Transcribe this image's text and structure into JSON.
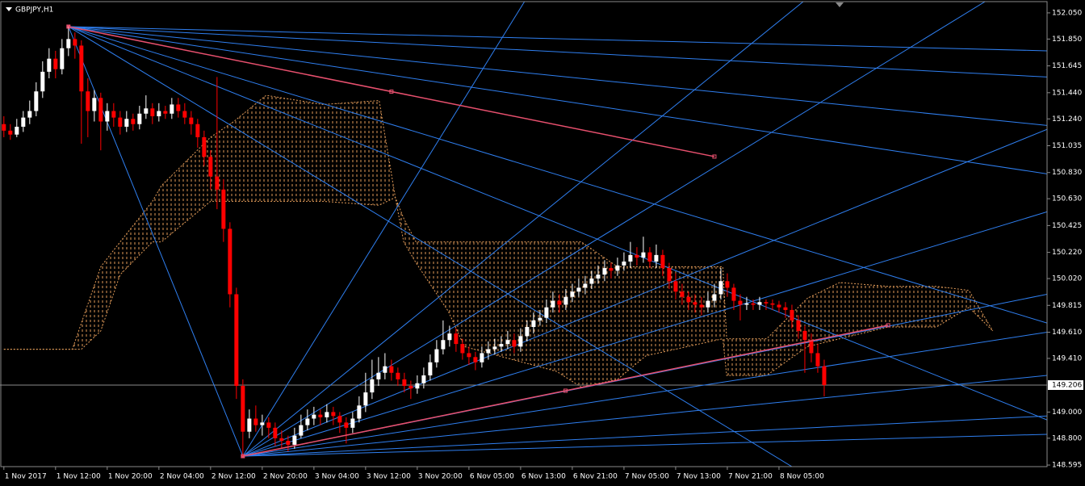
{
  "chart_data": {
    "type": "candlestick",
    "symbol": "GBPJPY,H1",
    "bull_color": "#ffffff",
    "bear_color": "#ff0000",
    "fan_color": "#2f7ff0",
    "trendline_color": "#e8506e",
    "cloud_color": "#e09a58",
    "current_price_color": "#8a8a8a",
    "xlim": [
      -0.6,
      161.5
    ],
    "ylim": [
      148.583,
      152.136
    ],
    "yticks": [
      {
        "value": 152.05,
        "label": "152.050"
      },
      {
        "value": 151.85,
        "label": "151.850"
      },
      151.645,
      {
        "value": 151.44,
        "label": "151.440"
      },
      {
        "value": 151.24,
        "label": "151.240"
      },
      151.035,
      {
        "value": 150.83,
        "label": "150.830"
      },
      {
        "value": 150.63,
        "label": "150.630"
      },
      150.425,
      {
        "value": 150.22,
        "label": "150.220"
      },
      {
        "value": 150.02,
        "label": "150.020"
      },
      149.815,
      {
        "value": 149.61,
        "label": "149.610"
      },
      {
        "value": 149.41,
        "label": "149.410"
      },
      {
        "value": 149.0,
        "label": "149.000"
      },
      {
        "value": 148.8,
        "label": "148.800"
      },
      148.595
    ],
    "xticks": [
      {
        "value": 0,
        "label": "1 Nov 2017"
      },
      {
        "value": 8,
        "label": "1 Nov 12:00"
      },
      {
        "value": 16,
        "label": "1 Nov 20:00"
      },
      {
        "value": 24,
        "label": "2 Nov 04:00"
      },
      {
        "value": 32,
        "label": "2 Nov 12:00"
      },
      {
        "value": 40,
        "label": "2 Nov 20:00"
      },
      {
        "value": 48,
        "label": "3 Nov 04:00"
      },
      {
        "value": 56,
        "label": "3 Nov 12:00"
      },
      {
        "value": 64,
        "label": "3 Nov 20:00"
      },
      {
        "value": 72,
        "label": "6 Nov 05:00"
      },
      {
        "value": 80,
        "label": "6 Nov 13:00"
      },
      {
        "value": 88,
        "label": "6 Nov 21:00"
      },
      {
        "value": 96,
        "label": "7 Nov 05:00"
      },
      {
        "value": 104,
        "label": "7 Nov 13:00"
      },
      {
        "value": 112,
        "label": "7 Nov 21:00"
      },
      {
        "value": 120,
        "label": "8 Nov 05:00"
      }
    ],
    "current_price": 149.206,
    "candles": [
      [
        151.2,
        151.26,
        151.1,
        151.15
      ],
      [
        151.15,
        151.2,
        151.08,
        151.12
      ],
      [
        151.12,
        151.24,
        151.1,
        151.18
      ],
      [
        151.18,
        151.3,
        151.14,
        151.25
      ],
      [
        151.25,
        151.38,
        151.2,
        151.3
      ],
      [
        151.3,
        151.52,
        151.26,
        151.45
      ],
      [
        151.45,
        151.68,
        151.4,
        151.6
      ],
      [
        151.6,
        151.78,
        151.55,
        151.7
      ],
      [
        151.7,
        151.76,
        151.55,
        151.62
      ],
      [
        151.62,
        151.85,
        151.58,
        151.78
      ],
      [
        151.78,
        151.945,
        151.72,
        151.85
      ],
      [
        151.85,
        151.9,
        151.7,
        151.8
      ],
      [
        151.8,
        151.84,
        151.05,
        151.45
      ],
      [
        151.45,
        151.55,
        151.1,
        151.3
      ],
      [
        151.3,
        151.46,
        151.22,
        151.4
      ],
      [
        151.4,
        151.44,
        151.0,
        151.22
      ],
      [
        151.22,
        151.36,
        151.15,
        151.3
      ],
      [
        151.3,
        151.36,
        151.18,
        151.25
      ],
      [
        151.25,
        151.3,
        151.12,
        151.18
      ],
      [
        151.18,
        151.3,
        151.14,
        151.24
      ],
      [
        151.24,
        151.28,
        151.15,
        151.2
      ],
      [
        151.2,
        151.34,
        151.16,
        151.28
      ],
      [
        151.28,
        151.42,
        151.24,
        151.32
      ],
      [
        151.32,
        151.36,
        151.2,
        151.26
      ],
      [
        151.26,
        151.36,
        151.22,
        151.3
      ],
      [
        151.3,
        151.34,
        151.24,
        151.28
      ],
      [
        151.28,
        151.4,
        151.24,
        151.35
      ],
      [
        151.35,
        151.4,
        151.25,
        151.3
      ],
      [
        151.3,
        151.36,
        151.2,
        151.25
      ],
      [
        151.25,
        151.3,
        151.12,
        151.2
      ],
      [
        151.2,
        151.24,
        151.02,
        151.1
      ],
      [
        151.1,
        151.15,
        150.88,
        150.95
      ],
      [
        150.95,
        151.0,
        150.7,
        150.8
      ],
      [
        150.8,
        151.56,
        150.55,
        150.7
      ],
      [
        150.7,
        150.78,
        150.3,
        150.4
      ],
      [
        150.4,
        150.45,
        149.8,
        149.9
      ],
      [
        149.9,
        149.95,
        149.1,
        149.2
      ],
      [
        149.2,
        149.25,
        148.663,
        148.85
      ],
      [
        148.85,
        149.02,
        148.8,
        148.95
      ],
      [
        148.95,
        149.05,
        148.85,
        148.9
      ],
      [
        148.9,
        148.98,
        148.82,
        148.92
      ],
      [
        148.92,
        148.96,
        148.8,
        148.88
      ],
      [
        148.88,
        148.92,
        148.74,
        148.8
      ],
      [
        148.8,
        148.86,
        148.72,
        148.78
      ],
      [
        148.78,
        148.82,
        148.7,
        148.75
      ],
      [
        148.75,
        148.88,
        148.72,
        148.82
      ],
      [
        148.82,
        148.98,
        148.8,
        148.9
      ],
      [
        148.9,
        149.02,
        148.86,
        148.95
      ],
      [
        148.95,
        149.04,
        148.9,
        148.98
      ],
      [
        148.98,
        149.02,
        148.9,
        148.96
      ],
      [
        148.96,
        149.06,
        148.92,
        149.0
      ],
      [
        149.0,
        149.04,
        148.9,
        148.97
      ],
      [
        148.97,
        149.0,
        148.84,
        148.92
      ],
      [
        148.92,
        148.96,
        148.76,
        148.88
      ],
      [
        148.88,
        149.0,
        148.84,
        148.95
      ],
      [
        148.95,
        149.12,
        148.92,
        149.05
      ],
      [
        149.05,
        149.3,
        149.0,
        149.15
      ],
      [
        149.15,
        149.4,
        149.1,
        149.25
      ],
      [
        149.25,
        149.42,
        149.2,
        149.3
      ],
      [
        149.3,
        149.45,
        149.25,
        149.35
      ],
      [
        149.35,
        149.4,
        149.24,
        149.3
      ],
      [
        149.3,
        149.34,
        149.2,
        149.25
      ],
      [
        149.25,
        149.3,
        149.15,
        149.2
      ],
      [
        149.2,
        149.24,
        149.1,
        149.18
      ],
      [
        149.18,
        149.28,
        149.14,
        149.22
      ],
      [
        149.22,
        149.34,
        149.18,
        149.28
      ],
      [
        149.28,
        149.44,
        149.24,
        149.38
      ],
      [
        149.38,
        149.55,
        149.34,
        149.48
      ],
      [
        149.48,
        149.7,
        149.44,
        149.55
      ],
      [
        149.55,
        149.66,
        149.5,
        149.6
      ],
      [
        149.6,
        149.64,
        149.46,
        149.52
      ],
      [
        149.52,
        149.56,
        149.4,
        149.45
      ],
      [
        149.45,
        149.5,
        149.36,
        149.42
      ],
      [
        149.42,
        149.46,
        149.32,
        149.38
      ],
      [
        149.38,
        149.5,
        149.34,
        149.45
      ],
      [
        149.45,
        149.54,
        149.4,
        149.48
      ],
      [
        149.48,
        149.56,
        149.44,
        149.5
      ],
      [
        149.5,
        149.58,
        149.46,
        149.52
      ],
      [
        149.52,
        149.62,
        149.48,
        149.55
      ],
      [
        149.55,
        149.6,
        149.45,
        149.5
      ],
      [
        149.5,
        149.64,
        149.46,
        149.58
      ],
      [
        149.58,
        149.7,
        149.54,
        149.65
      ],
      [
        149.65,
        149.76,
        149.6,
        149.7
      ],
      [
        149.7,
        149.78,
        149.66,
        149.72
      ],
      [
        149.72,
        149.86,
        149.68,
        149.8
      ],
      [
        149.8,
        149.92,
        149.76,
        149.85
      ],
      [
        149.85,
        149.9,
        149.76,
        149.82
      ],
      [
        149.82,
        149.94,
        149.78,
        149.88
      ],
      [
        149.88,
        149.98,
        149.84,
        149.92
      ],
      [
        149.92,
        150.02,
        149.88,
        149.95
      ],
      [
        149.95,
        150.04,
        149.9,
        149.98
      ],
      [
        149.98,
        150.08,
        149.94,
        150.02
      ],
      [
        150.02,
        150.12,
        149.98,
        150.05
      ],
      [
        150.05,
        150.16,
        150.0,
        150.1
      ],
      [
        150.1,
        150.14,
        150.02,
        150.08
      ],
      [
        150.08,
        150.18,
        150.04,
        150.12
      ],
      [
        150.12,
        150.22,
        150.08,
        150.15
      ],
      [
        150.15,
        150.3,
        150.1,
        150.2
      ],
      [
        150.2,
        150.26,
        150.12,
        150.18
      ],
      [
        150.18,
        150.34,
        150.14,
        150.22
      ],
      [
        150.22,
        150.26,
        150.1,
        150.15
      ],
      [
        150.15,
        150.28,
        150.1,
        150.2
      ],
      [
        150.2,
        150.24,
        150.04,
        150.1
      ],
      [
        150.1,
        150.14,
        149.94,
        150.0
      ],
      [
        150.0,
        150.06,
        149.86,
        149.92
      ],
      [
        149.92,
        149.98,
        149.82,
        149.88
      ],
      [
        149.88,
        149.92,
        149.78,
        149.84
      ],
      [
        149.84,
        149.9,
        149.76,
        149.82
      ],
      [
        149.82,
        149.88,
        149.74,
        149.8
      ],
      [
        149.8,
        149.92,
        149.76,
        149.85
      ],
      [
        149.85,
        149.98,
        149.8,
        149.9
      ],
      [
        149.9,
        150.1,
        149.86,
        150.0
      ],
      [
        150.0,
        150.06,
        149.88,
        149.95
      ],
      [
        149.95,
        149.98,
        149.78,
        149.85
      ],
      [
        149.85,
        149.9,
        149.7,
        149.82
      ],
      [
        149.82,
        149.88,
        149.78,
        149.83
      ],
      [
        149.83,
        149.86,
        149.78,
        149.82
      ],
      [
        149.82,
        149.88,
        149.78,
        149.84
      ],
      [
        149.84,
        149.86,
        149.78,
        149.83
      ],
      [
        149.83,
        149.86,
        149.78,
        149.82
      ],
      [
        149.82,
        149.85,
        149.76,
        149.8
      ],
      [
        149.8,
        149.84,
        149.72,
        149.78
      ],
      [
        149.78,
        149.82,
        149.64,
        149.7
      ],
      [
        149.7,
        149.74,
        149.56,
        149.62
      ],
      [
        149.62,
        149.66,
        149.3,
        149.55
      ],
      [
        149.55,
        149.6,
        149.38,
        149.45
      ],
      [
        149.45,
        149.52,
        149.3,
        149.35
      ],
      [
        149.35,
        149.4,
        149.12,
        149.206
      ]
    ],
    "cloud": {
      "x": [
        0,
        10.6,
        12,
        15,
        18,
        23,
        24.4,
        32,
        35.6,
        40.6,
        49.4,
        58.1,
        60.6,
        61.9,
        63.8,
        68.8,
        71.3,
        85.6,
        89.4,
        95,
        99.4,
        111.3,
        111.9,
        118.1,
        124.4,
        129.4,
        136.9,
        144.4,
        149.4,
        153.1
      ],
      "top": [
        149.48,
        149.48,
        149.68,
        150.11,
        150.3,
        150.61,
        150.73,
        151.1,
        151.22,
        151.42,
        151.35,
        151.38,
        150.64,
        150.48,
        150.3,
        150.3,
        150.3,
        150.3,
        150.3,
        150.11,
        150.11,
        150.11,
        149.56,
        149.56,
        149.87,
        149.99,
        149.96,
        149.96,
        149.93,
        149.62
      ],
      "bottom": [
        149.48,
        149.48,
        149.48,
        149.62,
        150.05,
        150.3,
        150.3,
        150.61,
        150.61,
        150.61,
        150.61,
        150.58,
        150.64,
        150.3,
        150.14,
        149.77,
        149.5,
        149.31,
        149.19,
        149.25,
        149.43,
        149.56,
        149.28,
        149.28,
        149.5,
        149.56,
        149.65,
        149.65,
        149.8,
        149.62
      ]
    },
    "gann_fans": [
      {
        "anchor": [
          10,
          151.945
        ],
        "ends": [
          [
            161.5,
            151.76
          ],
          [
            161.5,
            151.56
          ],
          [
            161.5,
            151.19
          ],
          [
            161.5,
            150.82
          ],
          [
            161.5,
            149.68
          ],
          [
            161.5,
            148.94
          ],
          [
            122,
            148.583
          ],
          [
            37,
            148.663
          ]
        ]
      },
      {
        "anchor": [
          37,
          148.663
        ],
        "ends": [
          [
            161.5,
            148.83
          ],
          [
            161.5,
            148.97
          ],
          [
            161.5,
            149.28
          ],
          [
            161.5,
            149.61
          ],
          [
            161.5,
            149.9
          ],
          [
            161.5,
            150.53
          ],
          [
            161.5,
            151.16
          ],
          [
            151.9,
            152.136
          ],
          [
            123.75,
            152.136
          ],
          [
            80.6,
            152.136
          ]
        ]
      }
    ],
    "trendlines": [
      {
        "x": [
          10,
          110
        ],
        "y": [
          151.945,
          150.952
        ]
      },
      {
        "x": [
          37,
          136.9
        ],
        "y": [
          148.663,
          149.663
        ]
      }
    ]
  }
}
